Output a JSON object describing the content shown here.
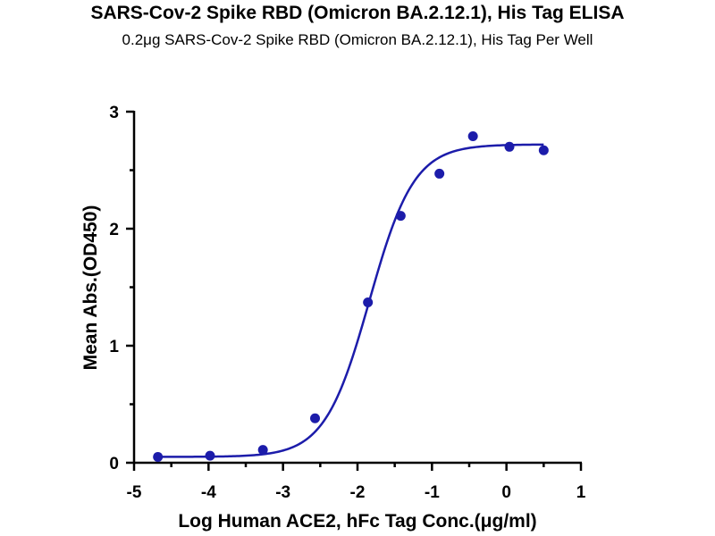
{
  "chart_data": {
    "type": "scatter",
    "title": "SARS-Cov-2 Spike RBD (Omicron BA.2.12.1), His Tag ELISA",
    "subtitle": "0.2μg SARS-Cov-2 Spike RBD (Omicron BA.2.12.1), His Tag Per Well",
    "xlabel": "Log Human ACE2, hFc Tag Conc.(μg/ml)",
    "ylabel": "Mean Abs.(OD450)",
    "xlim": [
      -5,
      1
    ],
    "ylim": [
      0,
      3
    ],
    "x_ticks": [
      "-5",
      "-4",
      "-3",
      "-2",
      "-1",
      "0",
      "1"
    ],
    "y_ticks": [
      "0",
      "1",
      "2",
      "3"
    ],
    "grid": false,
    "color": "#1c1caa",
    "series": [
      {
        "x": [
          -4.68,
          -3.98,
          -3.27,
          -2.57,
          -1.86,
          -1.42,
          -0.9,
          -0.45,
          0.04,
          0.5
        ],
        "y": [
          0.05,
          0.06,
          0.11,
          0.38,
          1.37,
          2.11,
          2.47,
          2.79,
          2.7,
          2.67
        ]
      }
    ],
    "fit": {
      "model": "4PL",
      "bottom": 0.05,
      "top": 2.72,
      "log_ec50": -1.84,
      "hill": 1.45,
      "x_range": [
        -4.68,
        0.5
      ]
    }
  }
}
